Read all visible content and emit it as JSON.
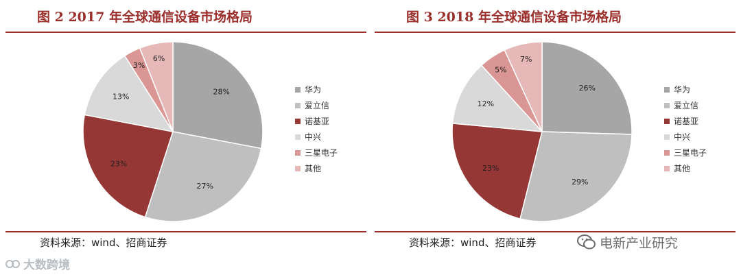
{
  "panels": [
    {
      "title": "图 2 2017 年全球通信设备市场格局",
      "source": "资料来源：wind、招商证券"
    },
    {
      "title": "图 3 2018 年全球通信设备市场格局",
      "source": "资料来源：wind、招商证券"
    }
  ],
  "watermarks": {
    "left": "大数跨境",
    "right": "电新产业研究"
  },
  "chart_data": [
    {
      "type": "pie",
      "title": "",
      "start": "12 o'clock, clockwise",
      "legend": "right",
      "categories": [
        "华为",
        "爱立信",
        "诺基亚",
        "中兴",
        "三星电子",
        "其他"
      ],
      "values": [
        28,
        27,
        23,
        13,
        3,
        6
      ],
      "labels": [
        "28%",
        "27%",
        "23%",
        "13%",
        "3%",
        "6%"
      ],
      "colors": [
        "#a6a6a6",
        "#bfbfbf",
        "#953735",
        "#d9d9d9",
        "#d99694",
        "#e6b9b8"
      ]
    },
    {
      "type": "pie",
      "title": "",
      "start": "12 o'clock, clockwise",
      "legend": "right",
      "categories": [
        "华为",
        "爱立信",
        "诺基亚",
        "中兴",
        "三星电子",
        "其他"
      ],
      "values": [
        26,
        29,
        23,
        12,
        5,
        7
      ],
      "labels": [
        "26%",
        "29%",
        "23%",
        "12%",
        "5%",
        "7%"
      ],
      "colors": [
        "#a6a6a6",
        "#bfbfbf",
        "#953735",
        "#d9d9d9",
        "#d99694",
        "#e6b9b8"
      ]
    }
  ]
}
